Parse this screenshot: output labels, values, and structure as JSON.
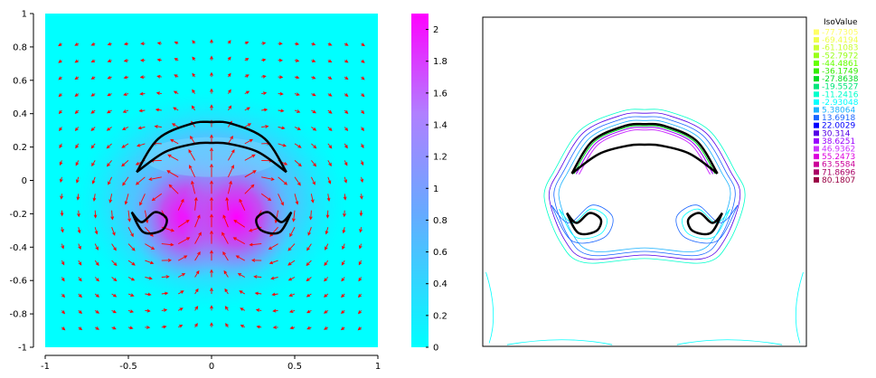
{
  "chart_data": [
    {
      "type": "heatmap",
      "title": "",
      "xlabel": "",
      "ylabel": "",
      "xlim": [
        -1,
        1
      ],
      "ylim": [
        -1,
        1
      ],
      "x_ticks": [
        -1,
        -0.5,
        0,
        0.5,
        1
      ],
      "y_ticks": [
        -1,
        -0.8,
        -0.6,
        -0.4,
        -0.2,
        0,
        0.2,
        0.4,
        0.6,
        0.8,
        1
      ],
      "colorbar": {
        "range": [
          0,
          2.1
        ],
        "ticks": [
          0,
          0.2,
          0.4,
          0.6,
          0.8,
          1,
          1.2,
          1.4,
          1.6,
          1.8,
          2
        ],
        "low_color": "#00ffff",
        "high_color": "#ff00ff"
      },
      "field_max": 2.1,
      "field_peaks": [
        [
          -0.15,
          -0.22
        ],
        [
          0.15,
          -0.22
        ]
      ],
      "arrow_color": "#ff0000",
      "interface_color": "#000000",
      "cap_outer": [
        [
          -0.45,
          0.05
        ],
        [
          -0.32,
          0.25
        ],
        [
          -0.12,
          0.34
        ],
        [
          0,
          0.35
        ],
        [
          0.12,
          0.34
        ],
        [
          0.32,
          0.25
        ],
        [
          0.45,
          0.05
        ]
      ],
      "cap_inner": [
        [
          -0.45,
          0.05
        ],
        [
          -0.28,
          0.17
        ],
        [
          -0.1,
          0.22
        ],
        [
          0,
          0.225
        ],
        [
          0.1,
          0.22
        ],
        [
          0.28,
          0.17
        ],
        [
          0.45,
          0.05
        ]
      ],
      "tail_left": [
        [
          -0.48,
          -0.19
        ],
        [
          -0.41,
          -0.31
        ],
        [
          -0.3,
          -0.3
        ],
        [
          -0.27,
          -0.23
        ],
        [
          -0.34,
          -0.19
        ],
        [
          -0.42,
          -0.25
        ],
        [
          -0.48,
          -0.19
        ]
      ],
      "tail_right": [
        [
          0.48,
          -0.19
        ],
        [
          0.41,
          -0.31
        ],
        [
          0.3,
          -0.3
        ],
        [
          0.27,
          -0.23
        ],
        [
          0.34,
          -0.19
        ],
        [
          0.42,
          -0.25
        ],
        [
          0.48,
          -0.19
        ]
      ]
    },
    {
      "type": "contour",
      "title": "",
      "legend_title": "IsoValue",
      "legend_position": "top-right",
      "xlim": [
        -1,
        1
      ],
      "ylim": [
        -1,
        1
      ],
      "iso_levels": [
        {
          "label": "-77.7305",
          "color": "#ffff66"
        },
        {
          "label": "-69.4194",
          "color": "#f0ff4d"
        },
        {
          "label": "-61.1083",
          "color": "#ccff33"
        },
        {
          "label": "-52.7972",
          "color": "#99ff1a"
        },
        {
          "label": "-44.4861",
          "color": "#66ff00"
        },
        {
          "label": "-36.1749",
          "color": "#33ee00"
        },
        {
          "label": "-27.8638",
          "color": "#00dd22"
        },
        {
          "label": "-19.5527",
          "color": "#00e67a"
        },
        {
          "label": "-11.2416",
          "color": "#00ffcc"
        },
        {
          "label": "-2.93048",
          "color": "#00ffff"
        },
        {
          "label": "5.38064",
          "color": "#1ab2ff"
        },
        {
          "label": "13.6918",
          "color": "#1a66ff"
        },
        {
          "label": "22.0029",
          "color": "#0000ff"
        },
        {
          "label": "30.314",
          "color": "#5500e6"
        },
        {
          "label": "38.6251",
          "color": "#9900ff"
        },
        {
          "label": "46.9362",
          "color": "#cc33ff"
        },
        {
          "label": "55.2473",
          "color": "#dd00dd"
        },
        {
          "label": "63.5584",
          "color": "#cc0099"
        },
        {
          "label": "71.8696",
          "color": "#aa0066"
        },
        {
          "label": "80.1807",
          "color": "#990044"
        }
      ],
      "interface_color": "#000000"
    }
  ]
}
